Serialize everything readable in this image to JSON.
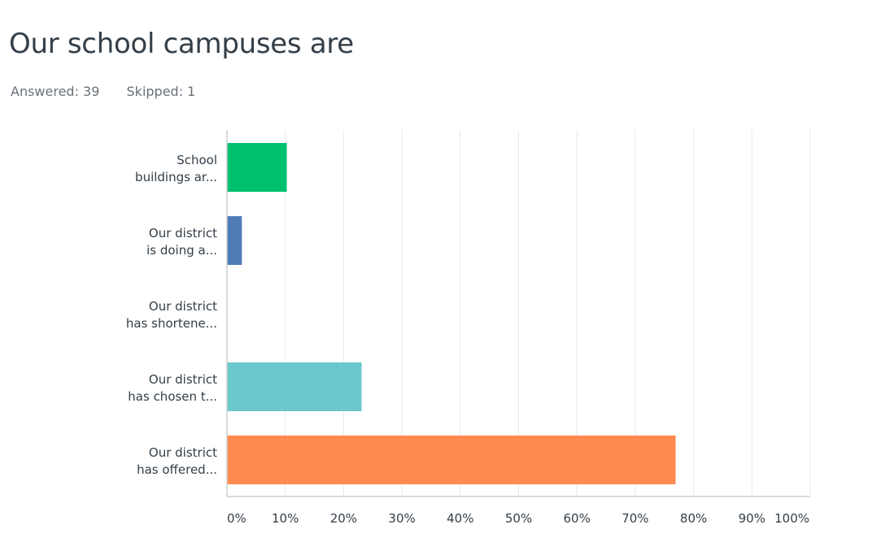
{
  "header": {
    "title": "Our school campuses are",
    "answered": "Answered: 39",
    "skipped": "Skipped: 1"
  },
  "chart_data": {
    "type": "bar",
    "orientation": "horizontal",
    "categories": [
      [
        "School",
        "buildings ar..."
      ],
      [
        "Our district",
        "is doing a..."
      ],
      [
        "Our district",
        "has shortene..."
      ],
      [
        "Our district",
        "has chosen t..."
      ],
      [
        "Our district",
        "has offered..."
      ]
    ],
    "values": [
      10.26,
      2.56,
      0,
      23.08,
      76.92
    ],
    "colors": [
      "#00bf6f",
      "#507cb6",
      "#f9be00",
      "#6bc8cd",
      "#ff8b4f"
    ],
    "xlim": [
      0,
      100
    ],
    "x_ticks": [
      "0%",
      "10%",
      "20%",
      "30%",
      "40%",
      "50%",
      "60%",
      "70%",
      "80%",
      "90%",
      "100%"
    ],
    "grid": true
  }
}
